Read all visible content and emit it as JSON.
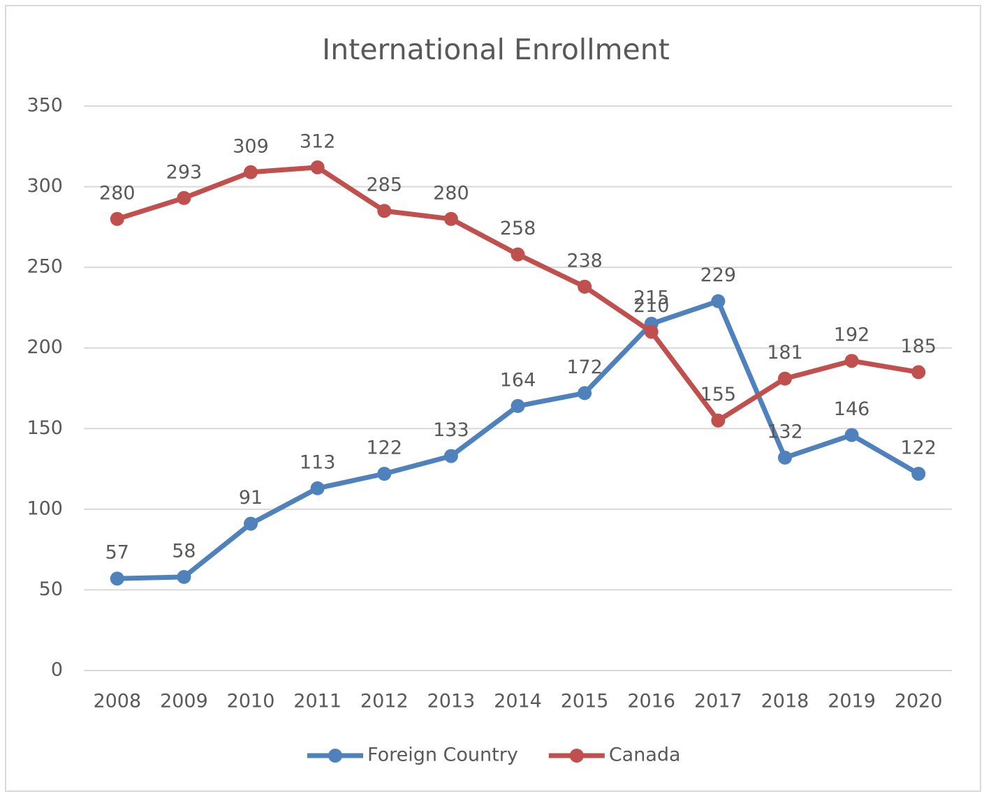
{
  "chart_data": {
    "type": "line",
    "title": "International Enrollment",
    "categories": [
      "2008",
      "2009",
      "2010",
      "2011",
      "2012",
      "2013",
      "2014",
      "2015",
      "2016",
      "2017",
      "2018",
      "2019",
      "2020"
    ],
    "series": [
      {
        "name": "Foreign Country",
        "color": "#4f81bd",
        "values": [
          57,
          58,
          91,
          113,
          122,
          133,
          164,
          172,
          215,
          229,
          132,
          146,
          122
        ]
      },
      {
        "name": "Canada",
        "color": "#c0504d",
        "values": [
          280,
          293,
          309,
          312,
          285,
          280,
          258,
          238,
          210,
          155,
          181,
          192,
          185
        ]
      }
    ],
    "ylim": [
      0,
      350
    ],
    "yticks": [
      0,
      50,
      100,
      150,
      200,
      250,
      300,
      350
    ],
    "grid": true,
    "legend": "bottom"
  }
}
